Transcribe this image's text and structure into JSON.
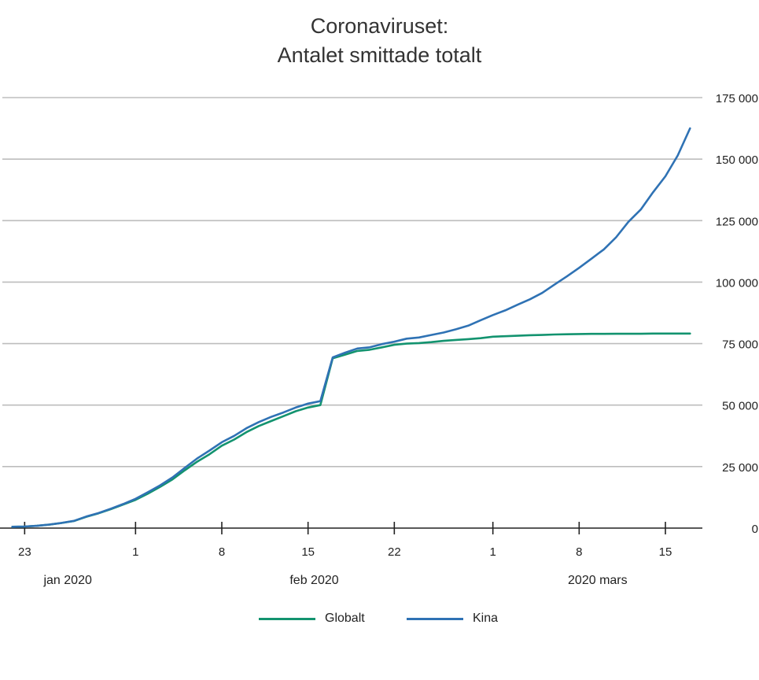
{
  "title_lines": [
    "Coronaviruset:",
    "Antalet smittade totalt"
  ],
  "colors": {
    "Globalt": "#13936f",
    "Kina": "#2f72b4",
    "grid": "#bdbdbd",
    "axis": "#222222"
  },
  "x_tick_labels": [
    "23",
    "1",
    "8",
    "15",
    "22",
    "1",
    "8",
    "15"
  ],
  "x_period_labels": [
    "jan 2020",
    "feb 2020",
    "2020 mars"
  ],
  "y_tick_labels": [
    "175 000",
    "150 000",
    "125 000",
    "100 000",
    "75 000",
    "50 000",
    "25 000",
    "0"
  ],
  "legend": [
    {
      "name": "Globalt",
      "color": "#13936f"
    },
    {
      "name": "Kina",
      "color": "#2f72b4"
    }
  ],
  "chart_data": {
    "type": "line",
    "title": "Coronaviruset: Antalet smittade totalt",
    "xlabel": "",
    "ylabel": "",
    "x_type": "date",
    "xlim": [
      "2020-01-21",
      "2020-03-18"
    ],
    "ylim": [
      0,
      175000
    ],
    "y_ticks": [
      0,
      25000,
      50000,
      75000,
      100000,
      125000,
      150000,
      175000
    ],
    "y_axis_side": "right",
    "grid": true,
    "legend_position": "bottom",
    "series": [
      {
        "name": "Globalt",
        "x": [
          "2020-01-22",
          "2020-01-23",
          "2020-01-24",
          "2020-01-25",
          "2020-01-26",
          "2020-01-27",
          "2020-01-28",
          "2020-01-29",
          "2020-01-30",
          "2020-01-31",
          "2020-02-01",
          "2020-02-02",
          "2020-02-03",
          "2020-02-04",
          "2020-02-05",
          "2020-02-06",
          "2020-02-07",
          "2020-02-08",
          "2020-02-09",
          "2020-02-10",
          "2020-02-11",
          "2020-02-12",
          "2020-02-13",
          "2020-02-14",
          "2020-02-15",
          "2020-02-16",
          "2020-02-17",
          "2020-02-18",
          "2020-02-19",
          "2020-02-20",
          "2020-02-21",
          "2020-02-22",
          "2020-02-23",
          "2020-02-24",
          "2020-02-25",
          "2020-02-26",
          "2020-02-27",
          "2020-02-28",
          "2020-02-29",
          "2020-03-01",
          "2020-03-02",
          "2020-03-03",
          "2020-03-04",
          "2020-03-05",
          "2020-03-06",
          "2020-03-07",
          "2020-03-08",
          "2020-03-09",
          "2020-03-10",
          "2020-03-11",
          "2020-03-12",
          "2020-03-13",
          "2020-03-14",
          "2020-03-15",
          "2020-03-16",
          "2020-03-17"
        ],
        "y": [
          550,
          640,
          920,
          1410,
          2070,
          2880,
          4600,
          6000,
          7700,
          9600,
          11500,
          14000,
          16800,
          19800,
          23500,
          27000,
          30000,
          33500,
          36000,
          39000,
          41500,
          43500,
          45500,
          47500,
          49000,
          50000,
          69000,
          70500,
          72000,
          72500,
          73500,
          74500,
          75000,
          75200,
          75600,
          76100,
          76500,
          76800,
          77200,
          77800,
          78000,
          78200,
          78400,
          78500,
          78700,
          78800,
          78900,
          78950,
          78950,
          79000,
          79000,
          79000,
          79100,
          79100,
          79100,
          79100
        ]
      },
      {
        "name": "Kina",
        "x": [
          "2020-01-22",
          "2020-01-23",
          "2020-01-24",
          "2020-01-25",
          "2020-01-26",
          "2020-01-27",
          "2020-01-28",
          "2020-01-29",
          "2020-01-30",
          "2020-01-31",
          "2020-02-01",
          "2020-02-02",
          "2020-02-03",
          "2020-02-04",
          "2020-02-05",
          "2020-02-06",
          "2020-02-07",
          "2020-02-08",
          "2020-02-09",
          "2020-02-10",
          "2020-02-11",
          "2020-02-12",
          "2020-02-13",
          "2020-02-14",
          "2020-02-15",
          "2020-02-16",
          "2020-02-17",
          "2020-02-18",
          "2020-02-19",
          "2020-02-20",
          "2020-02-21",
          "2020-02-22",
          "2020-02-23",
          "2020-02-24",
          "2020-02-25",
          "2020-02-26",
          "2020-02-27",
          "2020-02-28",
          "2020-02-29",
          "2020-03-01",
          "2020-03-02",
          "2020-03-03",
          "2020-03-04",
          "2020-03-05",
          "2020-03-06",
          "2020-03-07",
          "2020-03-08",
          "2020-03-09",
          "2020-03-10",
          "2020-03-11",
          "2020-03-12",
          "2020-03-13",
          "2020-03-14",
          "2020-03-15",
          "2020-03-16",
          "2020-03-17"
        ],
        "y": [
          550,
          650,
          940,
          1430,
          2100,
          2930,
          4700,
          6100,
          7900,
          9800,
          11900,
          14600,
          17400,
          20600,
          24500,
          28300,
          31500,
          34900,
          37500,
          40600,
          43100,
          45200,
          47000,
          49000,
          50600,
          51600,
          69400,
          71300,
          73000,
          73500,
          74800,
          75800,
          77000,
          77500,
          78500,
          79500,
          80800,
          82300,
          84500,
          86600,
          88500,
          90800,
          93000,
          95600,
          99000,
          102300,
          105800,
          109500,
          113300,
          118200,
          124500,
          129500,
          136500,
          143000,
          151500,
          162500
        ]
      }
    ]
  }
}
